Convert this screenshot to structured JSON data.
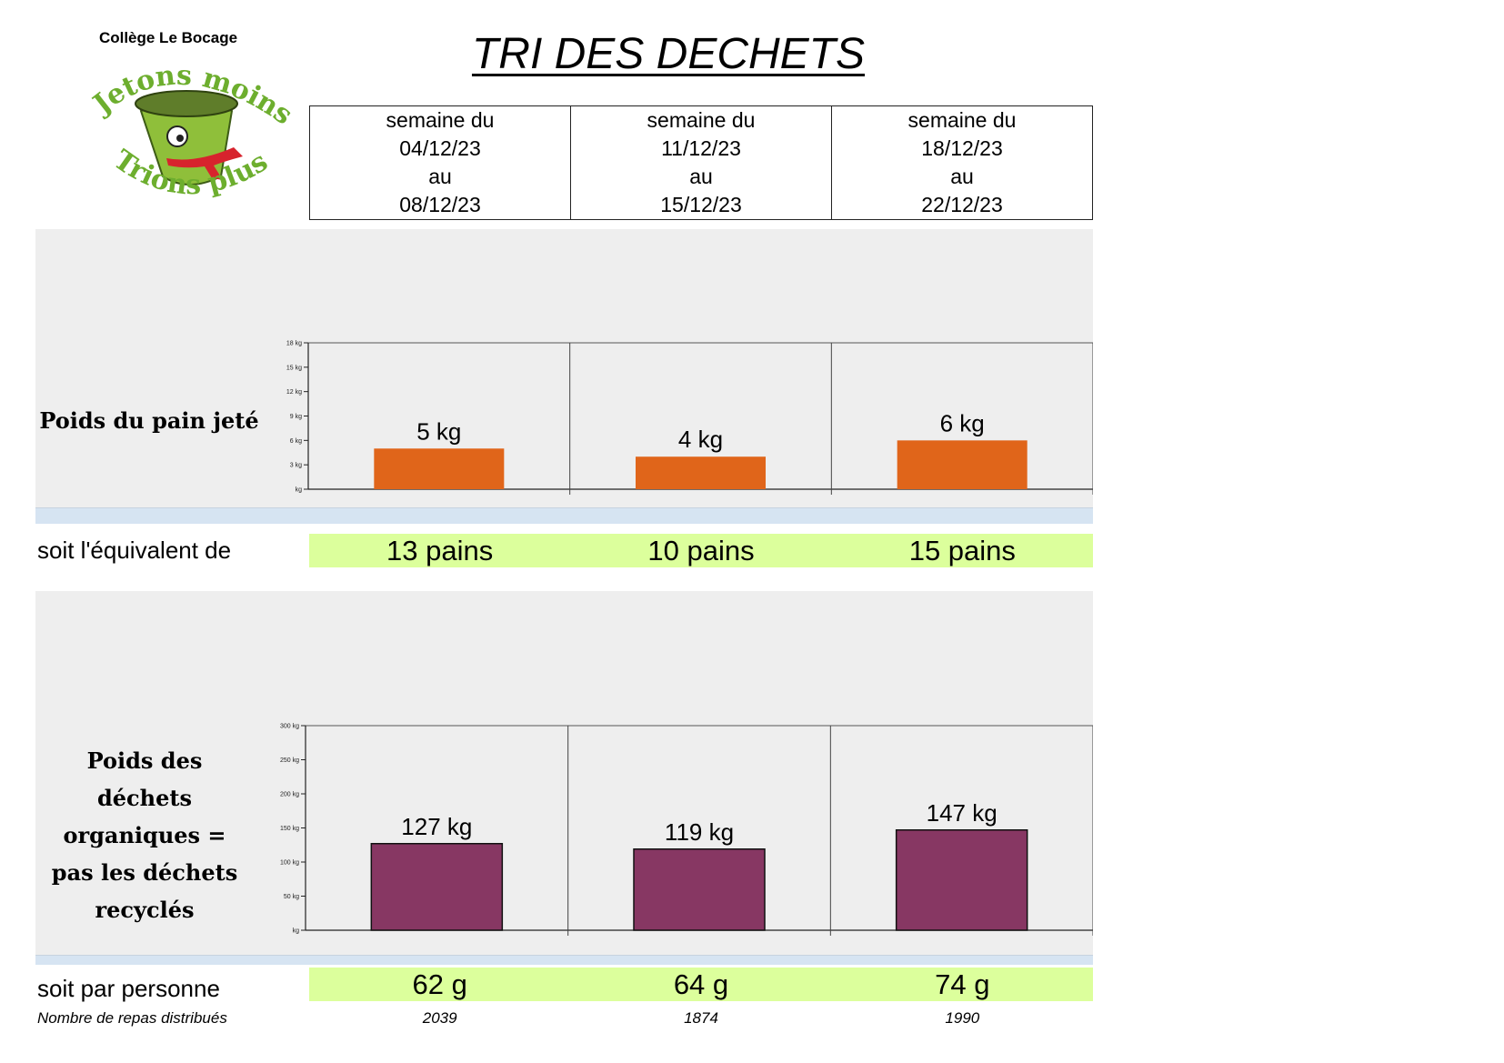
{
  "header": {
    "school": "Collège Le Bocage",
    "title": "TRI DES DECHETS",
    "logo": {
      "top_text": "Jetons moins",
      "bottom_text": "Trions plus",
      "colors": {
        "green": "#6dae2e",
        "red": "#d7232d",
        "mascot": "#8fbf3a"
      }
    }
  },
  "weeks": [
    {
      "line1": "semaine du",
      "start": "04/12/23",
      "line3": "au",
      "end": "08/12/23"
    },
    {
      "line1": "semaine du",
      "start": "11/12/23",
      "line3": "au",
      "end": "15/12/23"
    },
    {
      "line1": "semaine du",
      "start": "18/12/23",
      "line3": "au",
      "end": "22/12/23"
    }
  ],
  "bread": {
    "label": "Poids du pain jeté",
    "equiv_label": "soit l'équivalent de",
    "equivalents": [
      "13 pains",
      "10 pains",
      "15 pains"
    ]
  },
  "organic": {
    "label_lines": [
      "Poids des",
      "déchets",
      "organiques =",
      "pas les déchets",
      "recyclés"
    ],
    "per_person_label": "soit par personne",
    "per_person": [
      "62 g",
      "64 g",
      "74 g"
    ]
  },
  "meals": {
    "label": "Nombre de repas distribués",
    "values": [
      "2039",
      "1874",
      "1990"
    ]
  },
  "chart_data": [
    {
      "type": "bar",
      "categories": [
        "04/12/23 - 08/12/23",
        "11/12/23 - 15/12/23",
        "18/12/23 - 22/12/23"
      ],
      "values": [
        5,
        4,
        6
      ],
      "value_labels": [
        "5 kg",
        "4 kg",
        "6 kg"
      ],
      "ylim": [
        0,
        18
      ],
      "yticks": [
        0,
        3,
        6,
        9,
        12,
        15,
        18
      ],
      "ytick_labels": [
        "kg",
        "3 kg",
        "6 kg",
        "9 kg",
        "12 kg",
        "15 kg",
        "18 kg"
      ],
      "color": "#e0651a",
      "grid": false
    },
    {
      "type": "bar",
      "categories": [
        "04/12/23 - 08/12/23",
        "11/12/23 - 15/12/23",
        "18/12/23 - 22/12/23"
      ],
      "values": [
        127,
        119,
        147
      ],
      "value_labels": [
        "127 kg",
        "119 kg",
        "147 kg"
      ],
      "ylim": [
        0,
        300
      ],
      "yticks": [
        0,
        50,
        100,
        150,
        200,
        250,
        300
      ],
      "ytick_labels": [
        "kg",
        "50 kg",
        "100 kg",
        "150 kg",
        "200 kg",
        "250 kg",
        "300 kg"
      ],
      "color": "#873763",
      "grid": false
    }
  ]
}
